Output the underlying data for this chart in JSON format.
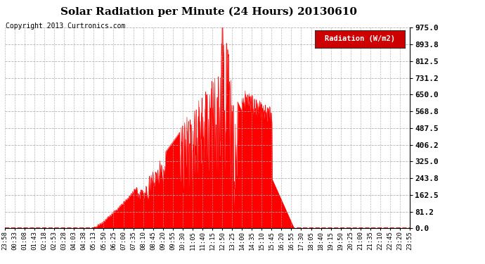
{
  "title": "Solar Radiation per Minute (24 Hours) 20130610",
  "copyright_text": "Copyright 2013 Curtronics.com",
  "legend_label": "Radiation (W/m2)",
  "yticks": [
    0.0,
    81.2,
    162.5,
    243.8,
    325.0,
    406.2,
    487.5,
    568.8,
    650.0,
    731.2,
    812.5,
    893.8,
    975.0
  ],
  "ymax": 975.0,
  "ymin": 0.0,
  "fill_color": "#FF0000",
  "line_color": "#FF0000",
  "background_color": "#FFFFFF",
  "plot_bg_color": "#FFFFFF",
  "grid_color": "#AAAAAA",
  "dashed_line_color": "#CC0000",
  "title_fontsize": 11,
  "copyright_fontsize": 7,
  "axis_fontsize": 6.5,
  "xtick_labels": [
    "23:58",
    "00:33",
    "01:08",
    "01:43",
    "02:18",
    "02:53",
    "03:28",
    "04:03",
    "04:38",
    "05:13",
    "05:50",
    "06:25",
    "07:00",
    "07:35",
    "08:10",
    "08:45",
    "09:20",
    "09:55",
    "10:30",
    "11:05",
    "11:40",
    "12:15",
    "12:50",
    "13:25",
    "14:00",
    "14:35",
    "15:10",
    "15:45",
    "16:20",
    "16:55",
    "17:30",
    "18:05",
    "18:40",
    "19:15",
    "19:50",
    "20:25",
    "21:00",
    "21:35",
    "22:10",
    "22:45",
    "23:20",
    "23:55"
  ]
}
